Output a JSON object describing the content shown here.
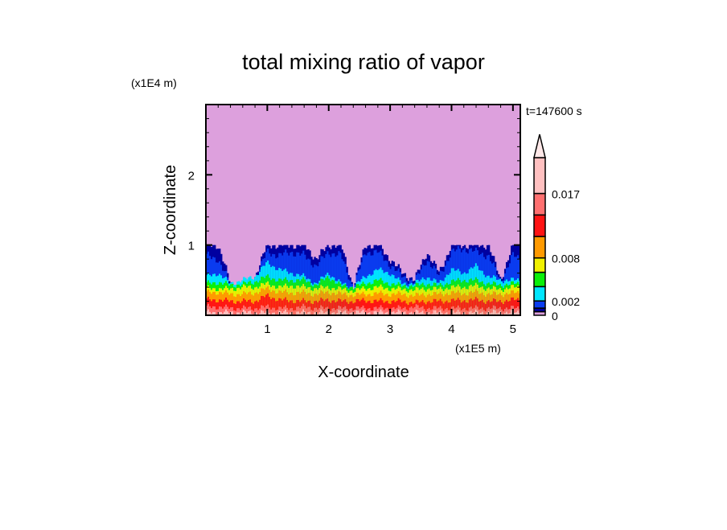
{
  "chart_data": {
    "type": "heatmap",
    "title": "total mixing ratio of vapor",
    "xlabel": "X-coordinate",
    "ylabel": "Z-coordinate",
    "x_unit": "(x1E5 m)",
    "y_unit": "(x1E4 m)",
    "time_label": "t=147600 s",
    "xlim": [
      0,
      5.12
    ],
    "ylim": [
      0,
      3
    ],
    "x_ticks": [
      1,
      2,
      3,
      4,
      5
    ],
    "y_ticks": [
      1,
      2
    ],
    "minor_tick_step": 0.2,
    "colorbar": {
      "levels": [
        0,
        0.0005,
        0.001,
        0.002,
        0.004,
        0.006,
        0.008,
        0.011,
        0.014,
        0.017,
        0.022
      ],
      "colors": [
        "#dda0dd",
        "#0000a0",
        "#0a3cf0",
        "#00e6ff",
        "#0af00a",
        "#f0f000",
        "#ff9a00",
        "#ff1414",
        "#ff7070",
        "#ffc0c0"
      ],
      "extend_color": "#ffe8e8",
      "extend": "max",
      "tick_labels": [
        "0",
        "0.002",
        "0.008",
        "0.017"
      ],
      "tick_values": [
        0,
        0.002,
        0.008,
        0.017
      ]
    },
    "profile_x": [
      0,
      0.2,
      0.4,
      0.6,
      0.8,
      1.0,
      1.2,
      1.4,
      1.6,
      1.8,
      2.0,
      2.2,
      2.4,
      2.6,
      2.8,
      3.0,
      3.2,
      3.4,
      3.6,
      3.8,
      4.0,
      4.2,
      4.4,
      4.6,
      4.8,
      5.0,
      5.12
    ],
    "contour_tops": [
      {
        "level": 0.0005,
        "z": [
          1.0,
          1.0,
          0.45,
          0.42,
          0.55,
          1.0,
          1.0,
          1.0,
          1.0,
          0.8,
          1.0,
          1.0,
          0.4,
          1.0,
          1.0,
          0.8,
          0.6,
          0.5,
          0.9,
          0.6,
          1.0,
          1.0,
          1.0,
          1.0,
          0.5,
          1.0,
          1.0
        ]
      },
      {
        "level": 0.001,
        "z": [
          0.85,
          0.8,
          0.43,
          0.4,
          0.52,
          0.9,
          0.85,
          0.9,
          0.85,
          0.7,
          0.9,
          0.85,
          0.39,
          0.9,
          0.9,
          0.72,
          0.55,
          0.47,
          0.8,
          0.55,
          0.9,
          0.95,
          0.9,
          0.85,
          0.48,
          0.85,
          0.8
        ]
      },
      {
        "level": 0.002,
        "z": [
          0.55,
          0.6,
          0.45,
          0.5,
          0.55,
          0.75,
          0.65,
          0.6,
          0.55,
          0.45,
          0.6,
          0.45,
          0.4,
          0.55,
          0.65,
          0.6,
          0.45,
          0.45,
          0.55,
          0.45,
          0.65,
          0.6,
          0.7,
          0.55,
          0.5,
          0.5,
          0.5
        ]
      },
      {
        "level": 0.004,
        "z": [
          0.45,
          0.47,
          0.43,
          0.44,
          0.48,
          0.55,
          0.5,
          0.5,
          0.5,
          0.43,
          0.55,
          0.42,
          0.4,
          0.45,
          0.5,
          0.45,
          0.42,
          0.42,
          0.45,
          0.42,
          0.48,
          0.5,
          0.5,
          0.45,
          0.43,
          0.45,
          0.45
        ]
      },
      {
        "level": 0.006,
        "z": [
          0.38,
          0.38,
          0.37,
          0.4,
          0.4,
          0.45,
          0.4,
          0.42,
          0.4,
          0.38,
          0.4,
          0.37,
          0.35,
          0.38,
          0.4,
          0.38,
          0.37,
          0.36,
          0.38,
          0.37,
          0.4,
          0.4,
          0.42,
          0.38,
          0.37,
          0.4,
          0.4
        ]
      },
      {
        "level": 0.008,
        "z": [
          0.32,
          0.33,
          0.3,
          0.3,
          0.32,
          0.38,
          0.33,
          0.32,
          0.32,
          0.3,
          0.33,
          0.3,
          0.29,
          0.3,
          0.31,
          0.3,
          0.3,
          0.28,
          0.3,
          0.3,
          0.32,
          0.31,
          0.33,
          0.3,
          0.3,
          0.32,
          0.32
        ]
      },
      {
        "level": 0.011,
        "z": [
          0.22,
          0.22,
          0.2,
          0.2,
          0.2,
          0.28,
          0.22,
          0.21,
          0.2,
          0.2,
          0.22,
          0.2,
          0.2,
          0.21,
          0.2,
          0.2,
          0.2,
          0.18,
          0.2,
          0.2,
          0.21,
          0.21,
          0.22,
          0.2,
          0.2,
          0.22,
          0.22
        ]
      },
      {
        "level": 0.014,
        "z": [
          0.12,
          0.12,
          0.1,
          0.1,
          0.1,
          0.12,
          0.1,
          0.1,
          0.12,
          0.1,
          0.1,
          0.1,
          0.1,
          0.1,
          0.1,
          0.1,
          0.1,
          0.12,
          0.1,
          0.1,
          0.1,
          0.1,
          0.1,
          0.1,
          0.1,
          0.1,
          0.1
        ]
      },
      {
        "level": 0.017,
        "z": [
          0.04,
          0.04,
          0.04,
          0.04,
          0.04,
          0.04,
          0.04,
          0.04,
          0.04,
          0.04,
          0.04,
          0.04,
          0.04,
          0.04,
          0.04,
          0.04,
          0.04,
          0.04,
          0.04,
          0.04,
          0.04,
          0.04,
          0.04,
          0.04,
          0.04,
          0.04,
          0.04
        ]
      }
    ]
  }
}
